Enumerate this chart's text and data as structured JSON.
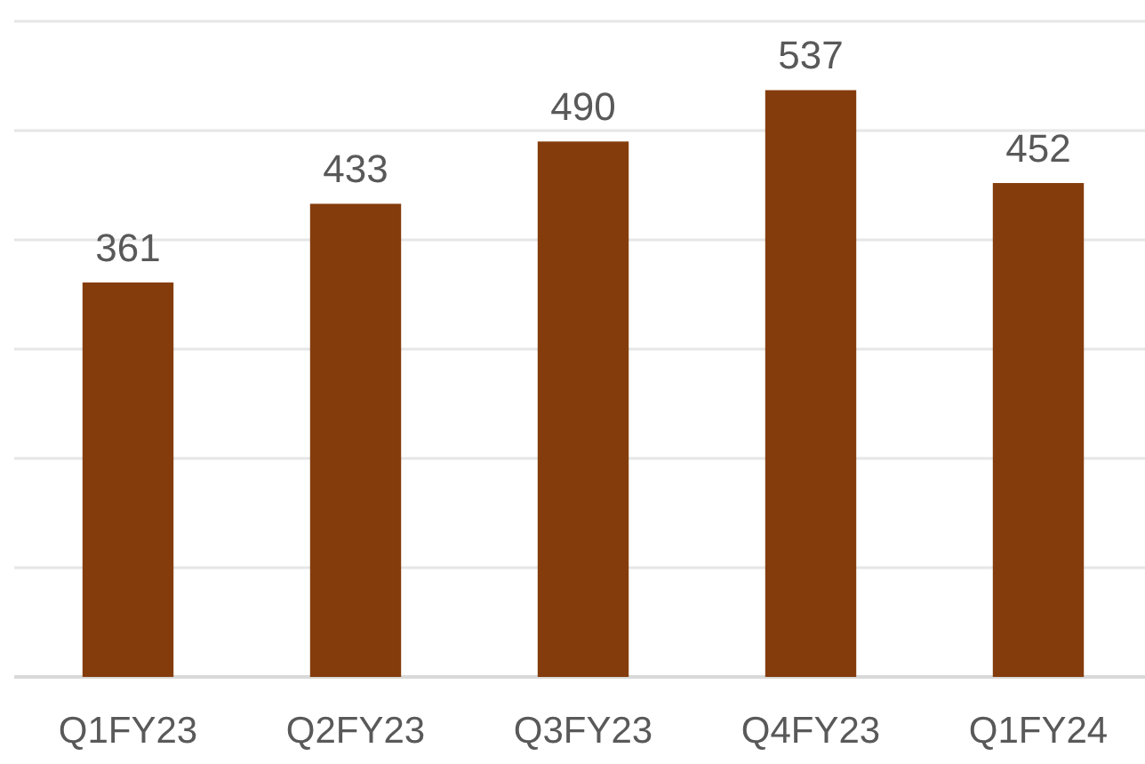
{
  "chart_data": {
    "type": "bar",
    "categories": [
      "Q1FY23",
      "Q2FY23",
      "Q3FY23",
      "Q4FY23",
      "Q1FY24"
    ],
    "values": [
      361,
      433,
      490,
      537,
      452
    ],
    "color": "#843c0c",
    "ylim": [
      0,
      600
    ],
    "yticks": [
      {
        "value": 0,
        "label": null
      },
      {
        "value": 100,
        "label": null
      },
      {
        "value": 200,
        "label": null
      },
      {
        "value": 300,
        "label": null
      },
      {
        "value": 400,
        "label": null
      },
      {
        "value": 500,
        "label": null
      },
      {
        "value": 600,
        "label": null
      }
    ],
    "grid": "y",
    "tick_labels": "x",
    "data_labels": true
  }
}
